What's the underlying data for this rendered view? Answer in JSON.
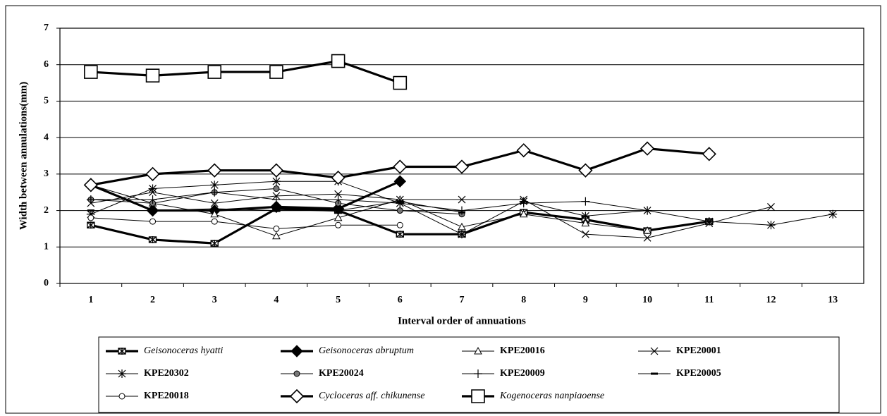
{
  "chart_data": {
    "type": "line",
    "x_label": "Interval order of annuations",
    "y_label": "Width between annulations(mm)",
    "categories": [
      "1",
      "2",
      "3",
      "4",
      "5",
      "6",
      "7",
      "8",
      "9",
      "10",
      "11",
      "12",
      "13"
    ],
    "ylim": [
      0,
      7
    ],
    "yticks": [
      0,
      1,
      2,
      3,
      4,
      5,
      6,
      7
    ],
    "grid": true,
    "series": [
      {
        "name": "Geisonoceras hyatti",
        "color": "#000000",
        "marker": "box-x",
        "thick": true,
        "italic": true,
        "values": [
          1.6,
          1.2,
          1.1,
          2.05,
          2.0,
          1.35,
          1.35,
          1.95,
          1.75,
          1.45,
          1.7,
          null,
          null
        ]
      },
      {
        "name": "Geisonoceras abruptum",
        "color": "#000000",
        "marker": "diamond",
        "thick": true,
        "italic": true,
        "values": [
          2.7,
          2.0,
          2.0,
          2.1,
          2.05,
          2.8,
          null,
          null,
          null,
          null,
          null,
          null,
          null
        ]
      },
      {
        "name": "KPE20016",
        "color": "#000000",
        "marker": "triangle",
        "thick": false,
        "italic": false,
        "values": [
          2.7,
          2.2,
          1.9,
          1.3,
          1.8,
          2.3,
          1.55,
          1.9,
          1.65,
          1.45,
          1.7,
          null,
          null
        ]
      },
      {
        "name": "KPE20001",
        "color": "#000000",
        "marker": "x",
        "thick": false,
        "italic": false,
        "values": [
          2.2,
          2.5,
          2.2,
          2.4,
          2.45,
          2.3,
          2.3,
          2.3,
          1.35,
          1.25,
          1.65,
          2.1,
          null
        ]
      },
      {
        "name": "KPE20302",
        "color": "#000000",
        "marker": "star",
        "thick": false,
        "italic": false,
        "values": [
          1.9,
          2.6,
          2.7,
          2.8,
          2.8,
          2.2,
          1.35,
          2.25,
          1.85,
          2.0,
          1.7,
          1.6,
          1.9
        ]
      },
      {
        "name": "KPE20024",
        "color": "#000000",
        "marker": "dot",
        "thick": false,
        "italic": false,
        "values": [
          2.3,
          2.2,
          2.5,
          2.6,
          2.2,
          2.0,
          1.9,
          null,
          null,
          null,
          null,
          null,
          null
        ]
      },
      {
        "name": "KPE20009",
        "color": "#000000",
        "marker": "plus",
        "thick": false,
        "italic": false,
        "values": [
          2.3,
          2.3,
          2.5,
          2.3,
          2.3,
          2.2,
          2.0,
          2.2,
          2.25,
          2.0,
          null,
          null,
          null
        ]
      },
      {
        "name": "KPE20005",
        "color": "#000000",
        "marker": "dash",
        "thick": false,
        "italic": false,
        "values": [
          2.0,
          2.0,
          2.05,
          2.0,
          2.0,
          2.25,
          1.95,
          null,
          null,
          null,
          null,
          null,
          null
        ]
      },
      {
        "name": "KPE20018",
        "color": "#000000",
        "marker": "circle",
        "thick": false,
        "italic": false,
        "values": [
          1.8,
          1.7,
          1.7,
          1.5,
          1.6,
          1.6,
          null,
          null,
          null,
          null,
          null,
          null,
          null
        ]
      },
      {
        "name": "Cycloceras aff. chikunense",
        "color": "#000000",
        "marker": "diamond-open",
        "thick": true,
        "italic": true,
        "values": [
          2.7,
          3.0,
          3.1,
          3.1,
          2.9,
          3.2,
          3.2,
          3.65,
          3.1,
          3.7,
          3.55,
          null,
          null
        ]
      },
      {
        "name": "Kogenoceras nanpiaoense",
        "color": "#000000",
        "marker": "square-open",
        "thick": true,
        "italic": true,
        "values": [
          5.8,
          5.7,
          5.8,
          5.8,
          6.1,
          5.5,
          null,
          null,
          null,
          null,
          null,
          null,
          null
        ]
      }
    ]
  }
}
